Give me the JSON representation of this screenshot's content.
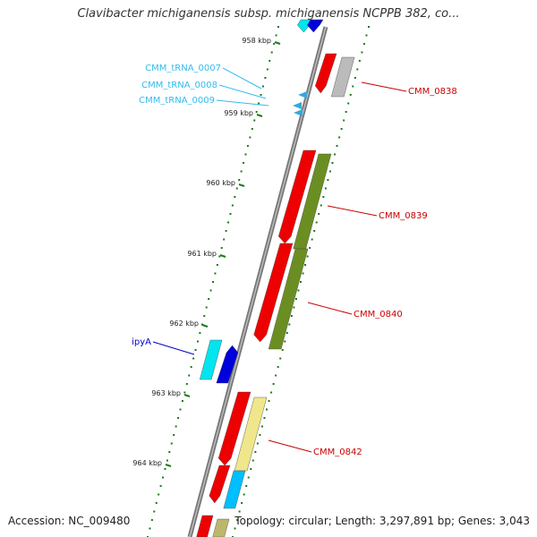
{
  "title": "Clavibacter michiganensis subsp. michiganensis NCPPB 382, co...",
  "footer": {
    "accession": "Accession: NC_009480",
    "summary": "Topology: circular; Length: 3,297,891 bp; Genes: 3,043"
  },
  "kbp_ticks": [
    "958 kbp",
    "959 kbp",
    "960 kbp",
    "961 kbp",
    "962 kbp",
    "963 kbp",
    "964 kbp"
  ],
  "features": [
    {
      "label": "CMM_tRNA_0007",
      "color": "#33bbee"
    },
    {
      "label": "CMM_tRNA_0008",
      "color": "#33bbee"
    },
    {
      "label": "CMM_tRNA_0009",
      "color": "#33bbee"
    },
    {
      "label": "CMM_0838",
      "color": "#cc0000"
    },
    {
      "label": "CMM_0839",
      "color": "#cc0000"
    },
    {
      "label": "CMM_0840",
      "color": "#cc0000"
    },
    {
      "label": "ipyA",
      "color": "#0000cc"
    },
    {
      "label": "CMM_0842",
      "color": "#cc0000"
    }
  ],
  "colors": {
    "backbone": "#888888",
    "tick": "#1a7a1a",
    "cds": "#ee0000",
    "cog_green": "#6b8e23",
    "cog_gray": "#bbbbbb",
    "cog_yellow": "#f0e68c",
    "cog_cyan": "#00e5ee",
    "cog_blue": "#0000dd",
    "cog_skyblue": "#00bfff",
    "cog_khaki": "#bdb76b",
    "trna": "#33aadd"
  }
}
